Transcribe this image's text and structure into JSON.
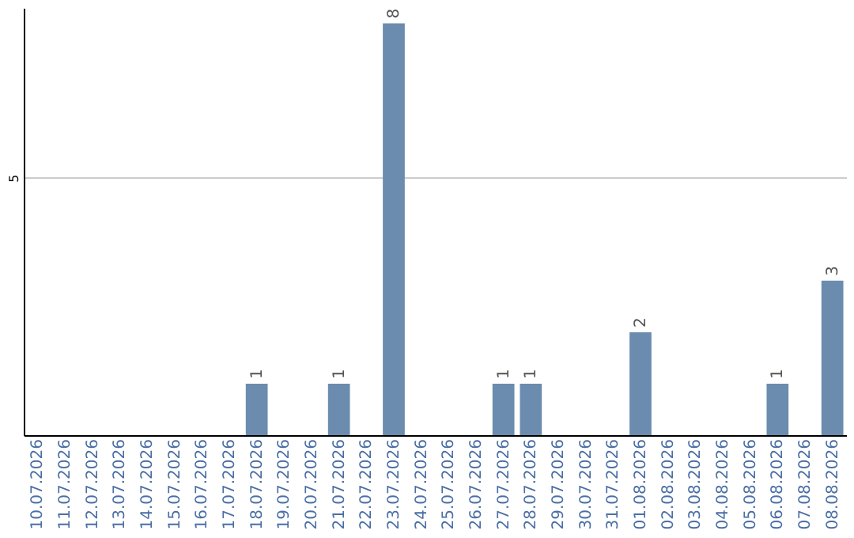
{
  "chart_data": {
    "type": "bar",
    "categories": [
      "10.07.2026",
      "11.07.2026",
      "12.07.2026",
      "13.07.2026",
      "14.07.2026",
      "15.07.2026",
      "16.07.2026",
      "17.07.2026",
      "18.07.2026",
      "19.07.2026",
      "20.07.2026",
      "21.07.2026",
      "22.07.2026",
      "23.07.2026",
      "24.07.2026",
      "25.07.2026",
      "26.07.2026",
      "27.07.2026",
      "28.07.2026",
      "29.07.2026",
      "30.07.2026",
      "31.07.2026",
      "01.08.2026",
      "02.08.2026",
      "03.08.2026",
      "04.08.2026",
      "05.08.2026",
      "06.08.2026",
      "07.08.2026",
      "08.08.2026"
    ],
    "values": [
      0,
      0,
      0,
      0,
      0,
      0,
      0,
      0,
      1,
      0,
      0,
      1,
      0,
      8,
      0,
      0,
      0,
      1,
      1,
      0,
      0,
      0,
      2,
      0,
      0,
      0,
      0,
      1,
      0,
      3
    ],
    "value_labels": [
      null,
      null,
      null,
      null,
      null,
      null,
      null,
      null,
      "1",
      null,
      null,
      "1",
      null,
      "8",
      null,
      null,
      null,
      "1",
      "1",
      null,
      null,
      null,
      "2",
      null,
      null,
      null,
      null,
      "1",
      null,
      "3"
    ],
    "color": "#6b8caf",
    "ylim": [
      0,
      8.3
    ],
    "yticks": [
      5
    ],
    "grid": "y"
  }
}
